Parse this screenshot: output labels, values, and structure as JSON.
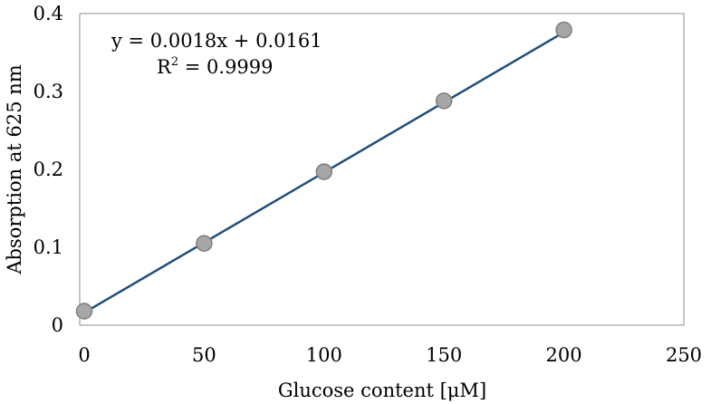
{
  "chart_data": {
    "type": "scatter",
    "title": "",
    "xlabel": "Glucose content [μM]",
    "ylabel": "Absorption at 625 nm",
    "xlim": [
      0,
      250
    ],
    "ylim": [
      0,
      0.4
    ],
    "x_ticks": [
      0,
      50,
      100,
      150,
      200,
      250
    ],
    "x_tick_labels": [
      "0",
      "50",
      "100",
      "150",
      "200",
      "250"
    ],
    "y_ticks": [
      0,
      0.1,
      0.2,
      0.3,
      0.4
    ],
    "y_tick_labels": [
      "0",
      "0.1",
      "0.2",
      "0.3",
      "0.4"
    ],
    "grid": false,
    "legend": "none",
    "series": [
      {
        "x": [
          0,
          50,
          100,
          150,
          200
        ],
        "y": [
          0.018,
          0.105,
          0.197,
          0.288,
          0.379
        ],
        "marker_color": "#a6a6a6",
        "marker_edge_color": "#7f7f7f"
      }
    ],
    "trendline": {
      "type": "linear",
      "slope": 0.0018,
      "intercept": 0.0161,
      "x_range": [
        0,
        200
      ],
      "color": "#1f4e79"
    },
    "annotations": {
      "equation": "y = 0.0018x + 0.0161",
      "r2_label": "R",
      "r2_exponent": "2",
      "r2_value": " = 0.9999"
    }
  }
}
